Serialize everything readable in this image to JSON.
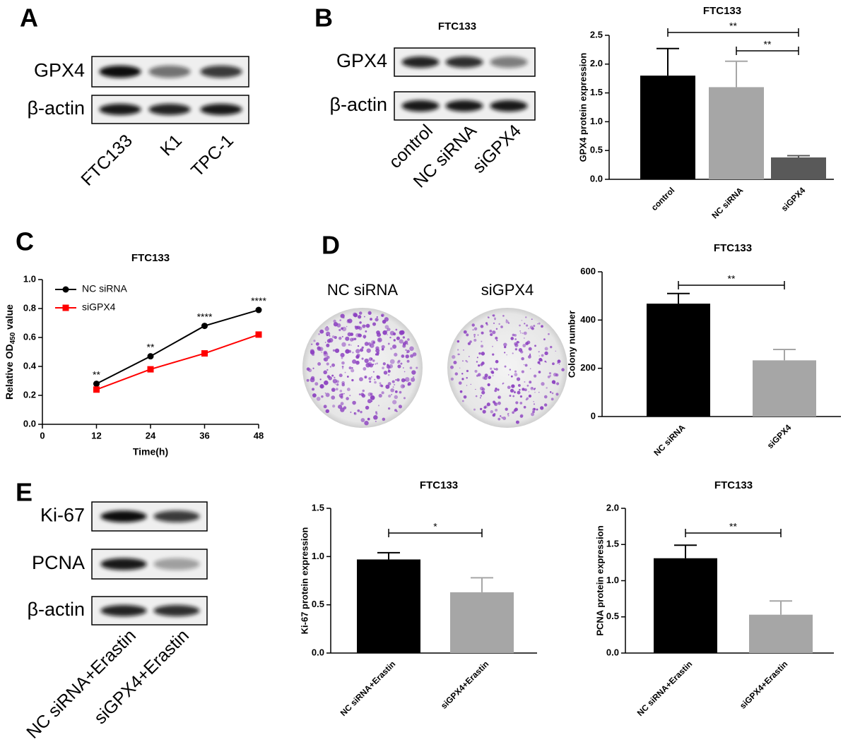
{
  "panel_labels": [
    "A",
    "B",
    "C",
    "D",
    "E"
  ],
  "blots": [
    {
      "rows": [
        "GPX4",
        "β-actin"
      ],
      "lanes": [
        "FTC133",
        "K1",
        "TPC-1"
      ]
    },
    {
      "title": "FTC133",
      "rows": [
        "GPX4",
        "β-actin"
      ],
      "lanes": [
        "control",
        "NC siRNA",
        "siGPX4"
      ]
    },
    {
      "rows": [
        "Ki-67",
        "PCNA",
        "β-actin"
      ],
      "lanes": [
        "NC siRNA+Erastin",
        "siGPX4+Erastin"
      ]
    }
  ],
  "colony_assay": {
    "labels": [
      "NC siRNA",
      "siGPX4"
    ]
  },
  "chart_data": [
    {
      "type": "bar",
      "title": "FTC133",
      "ylabel": "GPX4 protein expression",
      "categories": [
        "control",
        "NC siRNA",
        "siGPX4"
      ],
      "values": [
        1.8,
        1.6,
        0.38
      ],
      "errors": [
        0.47,
        0.45,
        0.03
      ],
      "colors": [
        "#000000",
        "#a6a6a6",
        "#595959"
      ],
      "ylim": [
        0,
        2.5
      ],
      "yticks": [
        {
          "value": 0,
          "label": "0.0"
        },
        0.5,
        {
          "value": 1,
          "label": "1.0"
        },
        1.5,
        {
          "value": 2,
          "label": "2.0"
        },
        2.5
      ],
      "comparisons": [
        {
          "pair": [
            0,
            2
          ],
          "label": "**"
        },
        {
          "pair": [
            1,
            2
          ],
          "label": "**"
        }
      ]
    },
    {
      "type": "line",
      "title": "FTC133",
      "xlabel": "Time(h)",
      "ylabel": "Relative OD",
      "ylabel_subscript": "450",
      "ylabel_suffix": " value",
      "x": [
        12,
        24,
        36,
        48
      ],
      "xlim": [
        0,
        48
      ],
      "xticks": [
        0,
        12,
        24,
        36,
        48
      ],
      "ylim": [
        0,
        1
      ],
      "yticks": [
        {
          "value": 0,
          "label": "0.0"
        },
        0.2,
        0.4,
        0.6,
        0.8,
        {
          "value": 1,
          "label": "1.0"
        }
      ],
      "series": [
        {
          "name": "NC siRNA",
          "color": "#000000",
          "marker": "circle",
          "values": [
            0.28,
            0.47,
            0.68,
            0.79
          ]
        },
        {
          "name": "siGPX4",
          "color": "#ff0000",
          "marker": "square",
          "values": [
            0.24,
            0.38,
            0.49,
            0.62
          ]
        }
      ],
      "significance": [
        "**",
        "**",
        "****",
        "****"
      ],
      "legend": "upper left"
    },
    {
      "type": "bar",
      "title": "FTC133",
      "ylabel": "Colony number",
      "categories": [
        "NC siRNA",
        "siGPX4"
      ],
      "values": [
        468,
        233
      ],
      "errors": [
        42,
        45
      ],
      "colors": [
        "#000000",
        "#a6a6a6"
      ],
      "ylim": [
        0,
        600
      ],
      "yticks": [
        0,
        200,
        400,
        600
      ],
      "comparisons": [
        {
          "pair": [
            0,
            1
          ],
          "label": "**"
        }
      ]
    },
    {
      "type": "bar",
      "title": "FTC133",
      "ylabel": "Ki-67 protein expression",
      "categories": [
        "NC siRNA+Erastin",
        "siGPX4+Erastin"
      ],
      "values": [
        0.97,
        0.63
      ],
      "errors": [
        0.07,
        0.15
      ],
      "colors": [
        "#000000",
        "#a6a6a6"
      ],
      "ylim": [
        0,
        1.5
      ],
      "yticks": [
        {
          "value": 0,
          "label": "0.0"
        },
        0.5,
        {
          "value": 1,
          "label": "1.0"
        },
        1.5
      ],
      "comparisons": [
        {
          "pair": [
            0,
            1
          ],
          "label": "*"
        }
      ]
    },
    {
      "type": "bar",
      "title": "FTC133",
      "ylabel": "PCNA protein expression",
      "categories": [
        "NC siRNA+Erastin",
        "siGPX4+Erastin"
      ],
      "values": [
        1.31,
        0.53
      ],
      "errors": [
        0.18,
        0.19
      ],
      "colors": [
        "#000000",
        "#a6a6a6"
      ],
      "ylim": [
        0,
        2
      ],
      "yticks": [
        {
          "value": 0,
          "label": "0.0"
        },
        0.5,
        {
          "value": 1,
          "label": "1.0"
        },
        1.5,
        {
          "value": 2,
          "label": "2.0"
        }
      ],
      "comparisons": [
        {
          "pair": [
            0,
            1
          ],
          "label": "**"
        }
      ]
    }
  ]
}
